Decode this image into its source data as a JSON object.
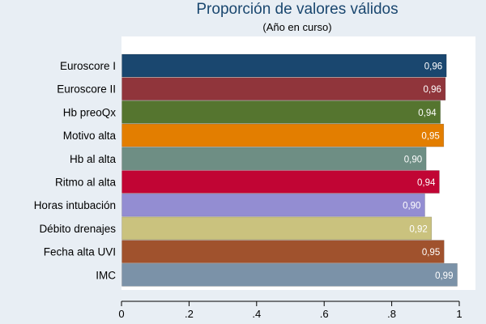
{
  "chart_data": {
    "type": "bar",
    "orientation": "horizontal",
    "title": "Proporción de valores válidos",
    "subtitle": "(Año en curso)",
    "categories": [
      "Euroscore I",
      "Euroscore II",
      "Hb preoQx",
      "Motivo alta",
      "Hb al alta",
      "Ritmo al alta",
      "Horas intubación",
      "Débito drenajes",
      "Fecha alta UVI",
      "IMC"
    ],
    "values": [
      0.962,
      0.959,
      0.944,
      0.954,
      0.902,
      0.941,
      0.898,
      0.918,
      0.955,
      0.994
    ],
    "value_labels": [
      "0,96",
      "0,96",
      "0,94",
      "0,95",
      "0,90",
      "0,94",
      "0,90",
      "0,92",
      "0,95",
      "0,99"
    ],
    "colors": [
      "#1a476f",
      "#90353b",
      "#55752f",
      "#e37e00",
      "#6e8e84",
      "#c10534",
      "#938dd2",
      "#cac27e",
      "#a0522d",
      "#7b92a8"
    ],
    "xlim": [
      0,
      1
    ],
    "x_ticks": [
      0,
      0.2,
      0.4,
      0.6,
      0.8,
      1
    ],
    "x_tick_labels": [
      "0",
      ".2",
      ".4",
      ".6",
      ".8",
      "1"
    ],
    "grid": false,
    "xlabel": "",
    "ylabel": ""
  },
  "style": {
    "background": "#e8eef4",
    "plot_background": "#ffffff",
    "title_color": "#1a476f",
    "text_color": "#000000",
    "value_label_color": "#ffffff"
  }
}
